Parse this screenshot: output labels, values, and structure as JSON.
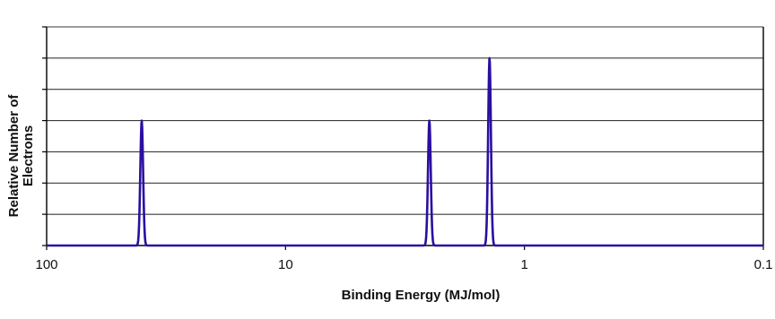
{
  "chart_data": {
    "type": "line",
    "title": "",
    "xlabel": "Binding Energy (MJ/mol)",
    "ylabel_lines": [
      "Relative Number of",
      "Electrons"
    ],
    "x_scale": "log",
    "x_reversed": true,
    "xlim": [
      100,
      0.1
    ],
    "x_ticks": [
      100,
      10,
      1,
      0.1
    ],
    "x_tick_labels": [
      "100",
      "10",
      "1",
      "0.1"
    ],
    "ylim": [
      0,
      7
    ],
    "y_gridlines": [
      1,
      2,
      3,
      4,
      5,
      6,
      7
    ],
    "y_tick_labels_shown": false,
    "grid": true,
    "legend": "none",
    "line_color": "#2a0fa0",
    "series": [
      {
        "peaks": [
          {
            "x": 40,
            "y": 4
          },
          {
            "x": 2.5,
            "y": 4
          },
          {
            "x": 1.4,
            "y": 6
          }
        ]
      }
    ]
  }
}
